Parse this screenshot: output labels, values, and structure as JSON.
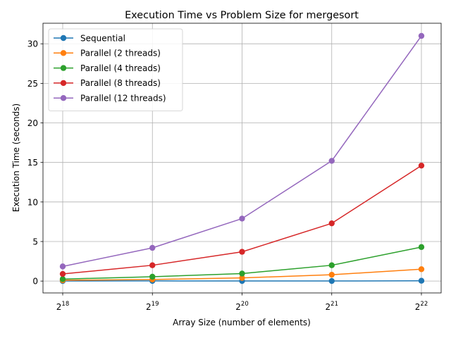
{
  "chart_data": {
    "type": "line",
    "title": "Execution Time vs Problem Size for mergesort",
    "xlabel": "Array Size (number of elements)",
    "ylabel": "Execution Time (seconds)",
    "x_scale": "log2",
    "x": [
      262144,
      524288,
      1048576,
      2097152,
      4194304
    ],
    "x_tick_labels": [
      {
        "base": "2",
        "exp": "18"
      },
      {
        "base": "2",
        "exp": "19"
      },
      {
        "base": "2",
        "exp": "20"
      },
      {
        "base": "2",
        "exp": "21"
      },
      {
        "base": "2",
        "exp": "22"
      }
    ],
    "y_ticks": [
      0,
      5,
      10,
      15,
      20,
      25,
      30
    ],
    "ylim": [
      -1.5,
      32.6
    ],
    "grid": true,
    "legend_position": "top-left",
    "series": [
      {
        "name": "Sequential",
        "color": "#1f77b4",
        "values": [
          0.01,
          0.02,
          0.01,
          0.01,
          0.04
        ]
      },
      {
        "name": "Parallel (2 threads)",
        "color": "#ff7f0e",
        "values": [
          0.1,
          0.2,
          0.4,
          0.8,
          1.5
        ]
      },
      {
        "name": "Parallel (4 threads)",
        "color": "#2ca02c",
        "values": [
          0.25,
          0.55,
          0.95,
          2.0,
          4.3
        ]
      },
      {
        "name": "Parallel (8 threads)",
        "color": "#d62728",
        "values": [
          0.9,
          2.0,
          3.7,
          7.3,
          14.6
        ]
      },
      {
        "name": "Parallel (12 threads)",
        "color": "#9467bd",
        "values": [
          1.85,
          4.2,
          7.9,
          15.2,
          31.0
        ]
      }
    ]
  }
}
